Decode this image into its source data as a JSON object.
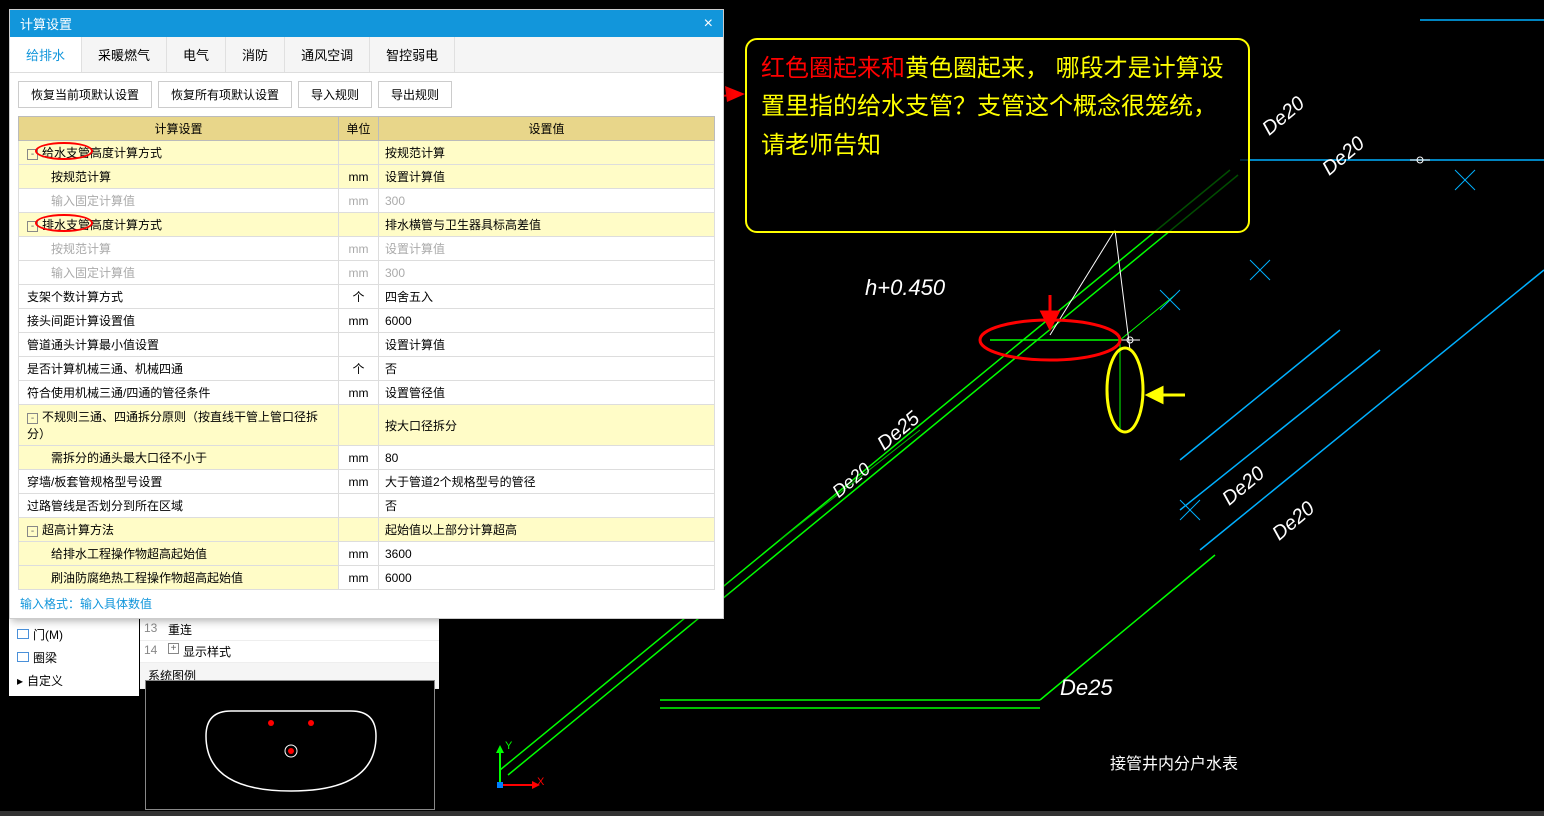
{
  "dialog": {
    "title": "计算设置",
    "tabs": [
      "给排水",
      "采暖燃气",
      "电气",
      "消防",
      "通风空调",
      "智控弱电"
    ],
    "active_tab": 0,
    "buttons": [
      "恢复当前项默认设置",
      "恢复所有项默认设置",
      "导入规则",
      "导出规则"
    ],
    "headers": [
      "计算设置",
      "单位",
      "设置值"
    ],
    "rows": [
      {
        "name": "给水支管高度计算方式",
        "unit": "",
        "val": "按规范计算",
        "indent": 0,
        "yellow": true,
        "tree": "-",
        "circle": true
      },
      {
        "name": "按规范计算",
        "unit": "mm",
        "val": "设置计算值",
        "indent": 1,
        "yellow": true
      },
      {
        "name": "输入固定计算值",
        "unit": "mm",
        "val": "300",
        "indent": 1,
        "disabled": true
      },
      {
        "name": "排水支管高度计算方式",
        "unit": "",
        "val": "排水横管与卫生器具标高差值",
        "indent": 0,
        "yellow": true,
        "tree": "-",
        "circle": true
      },
      {
        "name": "按规范计算",
        "unit": "mm",
        "val": "设置计算值",
        "indent": 1,
        "disabled": true
      },
      {
        "name": "输入固定计算值",
        "unit": "mm",
        "val": "300",
        "indent": 1,
        "disabled": true
      },
      {
        "name": "支架个数计算方式",
        "unit": "个",
        "val": "四舍五入",
        "indent": 0
      },
      {
        "name": "接头间距计算设置值",
        "unit": "mm",
        "val": "6000",
        "indent": 0
      },
      {
        "name": "管道通头计算最小值设置",
        "unit": "",
        "val": "设置计算值",
        "indent": 0
      },
      {
        "name": "是否计算机械三通、机械四通",
        "unit": "个",
        "val": "否",
        "indent": 0
      },
      {
        "name": "符合使用机械三通/四通的管径条件",
        "unit": "mm",
        "val": "设置管径值",
        "indent": 0
      },
      {
        "name": "不规则三通、四通拆分原则（按直线干管上管口径拆分）",
        "unit": "",
        "val": "按大口径拆分",
        "indent": 0,
        "yellow": true,
        "tree": "-"
      },
      {
        "name": "需拆分的通头最大口径不小于",
        "unit": "mm",
        "val": "80",
        "indent": 1,
        "hl": true
      },
      {
        "name": "穿墙/板套管规格型号设置",
        "unit": "mm",
        "val": "大于管道2个规格型号的管径",
        "indent": 0
      },
      {
        "name": "过路管线是否划分到所在区域",
        "unit": "",
        "val": "否",
        "indent": 0
      },
      {
        "name": "超高计算方法",
        "unit": "",
        "val": "起始值以上部分计算超高",
        "indent": 0,
        "yellow": true,
        "tree": "-"
      },
      {
        "name": "给排水工程操作物超高起始值",
        "unit": "mm",
        "val": "3600",
        "indent": 1,
        "hl": true
      },
      {
        "name": "刷油防腐绝热工程操作物超高起始值",
        "unit": "mm",
        "val": "6000",
        "indent": 1,
        "hl": true
      }
    ],
    "footer": "输入格式：输入具体数值"
  },
  "left_items": [
    "门(M)",
    "圈梁",
    "自定义"
  ],
  "prop_rows": [
    {
      "num": "13",
      "label": "重连"
    },
    {
      "num": "14",
      "label": "显示样式",
      "tree": "+"
    }
  ],
  "prop_title": "系统图例",
  "annotation": {
    "line1_red": "红色圈起来和",
    "line1_yellow": "黄色圈起来，",
    "line2": "哪段才是计算设置里指的给水支管？支管这个概念很笼统，请老师告知"
  },
  "cad_labels": {
    "h_label": "h+0.450",
    "de25_1": "De25",
    "de25_2": "De25",
    "de20_1": "De20",
    "de20_2": "De20",
    "de20_3": "De20",
    "de20_4": "De20",
    "de20_5": "De20",
    "bottom_text": "接管井内分户水表",
    "axis_x": "X",
    "axis_y": "Y"
  },
  "colors": {
    "header_bg": "#1296db",
    "yellow_bg": "#fffcc7",
    "th_bg": "#e8d68a",
    "red": "#ff0000",
    "yellow": "#ffff00",
    "green": "#00ff00",
    "cyan": "#00b0ff"
  }
}
